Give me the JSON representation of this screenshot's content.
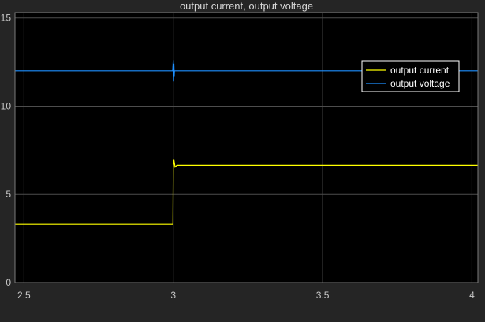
{
  "window": {
    "background": "#252525",
    "plot_background": "#000000",
    "grid_color": "#4d4d4d",
    "tick_color": "#c8c8c8"
  },
  "chart_data": {
    "type": "line",
    "title": "output current, output voltage",
    "xlabel": "",
    "ylabel": "",
    "xlim": [
      2.47,
      4.02
    ],
    "ylim": [
      0,
      15.3
    ],
    "xticks": [
      2.5,
      3,
      3.5,
      4
    ],
    "xtick_labels": [
      "2.5",
      "3",
      "3.5",
      "4"
    ],
    "yticks": [
      0,
      5,
      10,
      15
    ],
    "ytick_labels": [
      "0",
      "5",
      "10",
      "15"
    ],
    "grid": true,
    "legend_position": "top-right",
    "series": [
      {
        "name": "output current",
        "color": "#ffff00",
        "x": [
          2.47,
          2.999,
          3.0,
          3.002,
          3.006,
          3.012,
          4.02
        ],
        "y": [
          3.3,
          3.3,
          6.5,
          6.95,
          6.55,
          6.65,
          6.65
        ]
      },
      {
        "name": "output voltage",
        "color": "#1e90ff",
        "x": [
          2.47,
          2.998,
          3.0,
          3.001,
          3.002,
          3.003,
          3.004,
          4.02
        ],
        "y": [
          12.0,
          12.0,
          12.6,
          11.4,
          12.4,
          11.7,
          12.0,
          12.0
        ]
      }
    ]
  }
}
